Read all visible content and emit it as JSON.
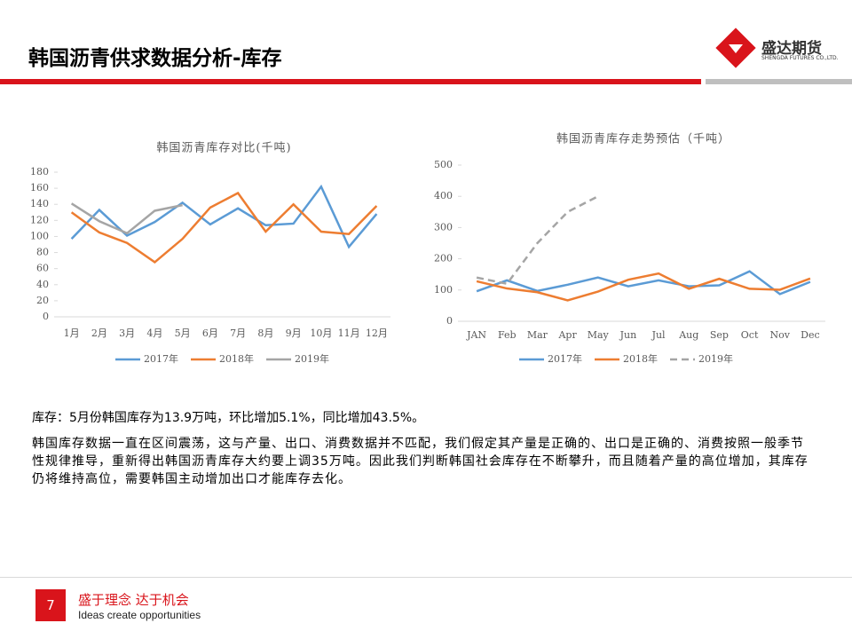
{
  "header": {
    "title": "韩国沥青供求数据分析-库存",
    "logo_text": "盛达期货",
    "logo_sub": "SHENGDA FUTURES CO.,LTD."
  },
  "chart_data": [
    {
      "type": "line",
      "title": "韩国沥青库存对比(千吨)",
      "categories": [
        "1月",
        "2月",
        "3月",
        "4月",
        "5月",
        "6月",
        "7月",
        "8月",
        "9月",
        "10月",
        "11月",
        "12月"
      ],
      "series": [
        {
          "name": "2017年",
          "color": "#5b9bd5",
          "values": [
            97,
            133,
            101,
            118,
            142,
            115,
            135,
            114,
            116,
            162,
            87,
            128
          ]
        },
        {
          "name": "2018年",
          "color": "#ed7d31",
          "values": [
            130,
            105,
            92,
            68,
            97,
            136,
            154,
            106,
            140,
            106,
            103,
            138
          ]
        },
        {
          "name": "2019年",
          "color": "#a5a5a5",
          "values": [
            141,
            119,
            104,
            132,
            139,
            null,
            null,
            null,
            null,
            null,
            null,
            null
          ]
        }
      ],
      "ylim": [
        0,
        180
      ],
      "yticks": [
        0,
        20,
        40,
        60,
        80,
        100,
        120,
        140,
        160,
        180
      ],
      "legend": "bottom"
    },
    {
      "type": "line",
      "title": "韩国沥青库存走势预估（千吨）",
      "categories": [
        "JAN",
        "Feb",
        "Mar",
        "Apr",
        "May",
        "Jun",
        "Jul",
        "Aug",
        "Sep",
        "Oct",
        "Nov",
        "Dec"
      ],
      "series": [
        {
          "name": "2017年",
          "color": "#5b9bd5",
          "values": [
            96,
            131,
            97,
            117,
            140,
            112,
            131,
            112,
            115,
            160,
            87,
            126
          ]
        },
        {
          "name": "2018年",
          "color": "#ed7d31",
          "values": [
            128,
            105,
            93,
            67,
            95,
            133,
            153,
            104,
            136,
            104,
            101,
            137
          ]
        },
        {
          "name": "2019年",
          "color": "#a5a5a5",
          "line_style": "dashed",
          "values": [
            140,
            120,
            250,
            350,
            400,
            null,
            null,
            null,
            null,
            null,
            null,
            null
          ]
        }
      ],
      "ylim": [
        0,
        500
      ],
      "yticks": [
        0,
        100,
        200,
        300,
        400,
        500
      ],
      "legend": "bottom"
    }
  ],
  "body": {
    "summary": "库存：5月份韩国库存为13.9万吨，环比增加5.1%，同比增加43.5%。",
    "paragraph": "韩国库存数据一直在区间震荡，这与产量、出口、消费数据并不匹配，我们假定其产量是正确的、出口是正确的、消费按照一般季节性规律推导，重新得出韩国沥青库存大约要上调35万吨。因此我们判断韩国社会库存在不断攀升，而且随着产量的高位增加，其库存仍将维持高位，需要韩国主动增加出口才能库存去化。"
  },
  "footer": {
    "page": "7",
    "slogan_1": "盛于理念",
    "slogan_2": "达于机会",
    "slogan_en": "Ideas create opportunities"
  }
}
